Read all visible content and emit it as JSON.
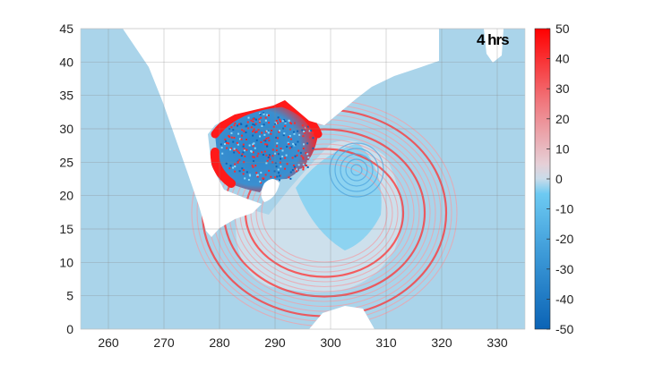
{
  "chart_data": {
    "type": "heatmap",
    "title": "",
    "xlabel": "",
    "ylabel": "",
    "xlim": [
      255,
      335
    ],
    "ylim": [
      0,
      45
    ],
    "xticks": [
      260,
      270,
      280,
      290,
      300,
      310,
      320,
      330
    ],
    "yticks": [
      0,
      5,
      10,
      15,
      20,
      25,
      30,
      35,
      40,
      45
    ],
    "grid": true,
    "annotation": "4 hrs",
    "colorbar": {
      "range": [
        -50,
        50
      ],
      "ticks": [
        50,
        40,
        30,
        20,
        10,
        0,
        -10,
        -20,
        -30,
        -40,
        -50
      ],
      "colormap": [
        "#0b63b5",
        "#5bc3f0",
        "#e8e0e6",
        "#ff0000"
      ],
      "location": "right"
    },
    "colors": {
      "sea": "#aad4ea",
      "land": "#ffffff",
      "positive": "#ff0000",
      "negative": "#0b63b5"
    }
  }
}
